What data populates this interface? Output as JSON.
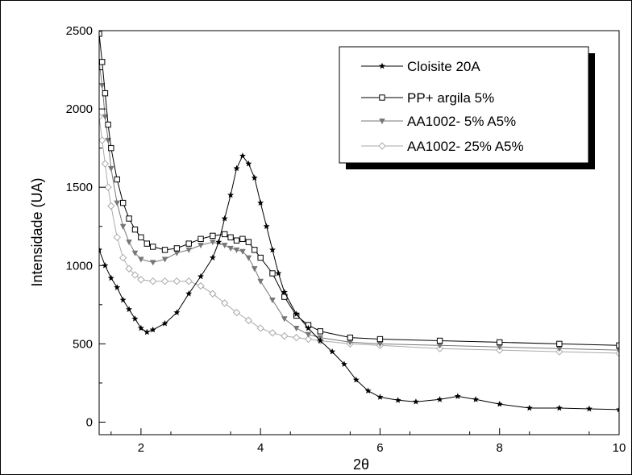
{
  "chart_data": {
    "type": "line",
    "xlabel": "2θ",
    "ylabel": "Intensidade (UA)",
    "xlim": [
      1.3,
      10
    ],
    "ylim": [
      -80,
      2500
    ],
    "xticks": [
      2,
      4,
      6,
      8,
      10
    ],
    "yticks": [
      0,
      500,
      1000,
      1500,
      2000,
      2500
    ],
    "grid": false,
    "legend_position": "top-right",
    "series": [
      {
        "name": "Cloisite 20A",
        "marker": "star",
        "color": "#000000",
        "x": [
          1.3,
          1.4,
          1.5,
          1.6,
          1.7,
          1.8,
          1.9,
          2.0,
          2.1,
          2.2,
          2.4,
          2.6,
          2.8,
          3.0,
          3.2,
          3.3,
          3.4,
          3.5,
          3.6,
          3.7,
          3.8,
          3.9,
          4.0,
          4.1,
          4.2,
          4.3,
          4.4,
          4.6,
          4.8,
          5.0,
          5.2,
          5.4,
          5.6,
          5.8,
          6.0,
          6.3,
          6.6,
          7.0,
          7.3,
          7.6,
          8.0,
          8.5,
          9.0,
          9.5,
          10.0
        ],
        "y": [
          1100,
          1000,
          920,
          860,
          780,
          720,
          660,
          600,
          575,
          590,
          630,
          700,
          820,
          930,
          1050,
          1150,
          1300,
          1450,
          1620,
          1700,
          1650,
          1560,
          1400,
          1250,
          1100,
          950,
          830,
          690,
          600,
          520,
          450,
          370,
          270,
          200,
          160,
          140,
          130,
          145,
          165,
          145,
          115,
          90,
          90,
          85,
          80
        ]
      },
      {
        "name": "PP+ argila 5%",
        "marker": "square",
        "color": "#000000",
        "x": [
          1.3,
          1.35,
          1.4,
          1.45,
          1.5,
          1.6,
          1.7,
          1.8,
          1.9,
          2.0,
          2.1,
          2.2,
          2.4,
          2.6,
          2.8,
          3.0,
          3.2,
          3.4,
          3.5,
          3.6,
          3.7,
          3.8,
          3.9,
          4.0,
          4.2,
          4.4,
          4.6,
          4.8,
          5.0,
          5.5,
          6.0,
          7.0,
          8.0,
          9.0,
          10.0
        ],
        "y": [
          2480,
          2300,
          2100,
          1900,
          1750,
          1550,
          1400,
          1300,
          1230,
          1180,
          1140,
          1120,
          1100,
          1110,
          1140,
          1170,
          1190,
          1200,
          1180,
          1160,
          1170,
          1150,
          1100,
          1050,
          950,
          800,
          680,
          620,
          580,
          540,
          530,
          520,
          510,
          500,
          490
        ]
      },
      {
        "name": "AA1002- 5% A5%",
        "marker": "triangle-down",
        "color": "#777777",
        "x": [
          1.3,
          1.35,
          1.4,
          1.45,
          1.5,
          1.6,
          1.7,
          1.8,
          1.9,
          2.0,
          2.2,
          2.4,
          2.6,
          2.8,
          3.0,
          3.2,
          3.4,
          3.5,
          3.6,
          3.7,
          3.8,
          3.9,
          4.0,
          4.2,
          4.4,
          4.6,
          4.8,
          5.0,
          5.5,
          6.0,
          7.0,
          8.0,
          9.0,
          10.0
        ],
        "y": [
          2300,
          2150,
          1950,
          1800,
          1620,
          1400,
          1250,
          1150,
          1080,
          1040,
          1020,
          1040,
          1080,
          1100,
          1130,
          1150,
          1130,
          1110,
          1100,
          1090,
          1050,
          980,
          900,
          780,
          660,
          600,
          560,
          540,
          510,
          500,
          490,
          480,
          470,
          460
        ]
      },
      {
        "name": "AA1002- 25% A5%",
        "marker": "diamond",
        "color": "#aaaaaa",
        "x": [
          1.3,
          1.35,
          1.4,
          1.45,
          1.5,
          1.6,
          1.7,
          1.8,
          1.9,
          2.0,
          2.2,
          2.4,
          2.6,
          2.8,
          3.0,
          3.2,
          3.4,
          3.6,
          3.8,
          4.0,
          4.2,
          4.4,
          4.6,
          4.8,
          5.0,
          5.5,
          6.0,
          7.0,
          8.0,
          9.0,
          10.0
        ],
        "y": [
          1950,
          1800,
          1650,
          1500,
          1380,
          1180,
          1050,
          980,
          940,
          910,
          900,
          900,
          900,
          900,
          870,
          820,
          760,
          700,
          650,
          600,
          570,
          550,
          540,
          530,
          520,
          500,
          490,
          470,
          460,
          450,
          440
        ]
      }
    ]
  }
}
